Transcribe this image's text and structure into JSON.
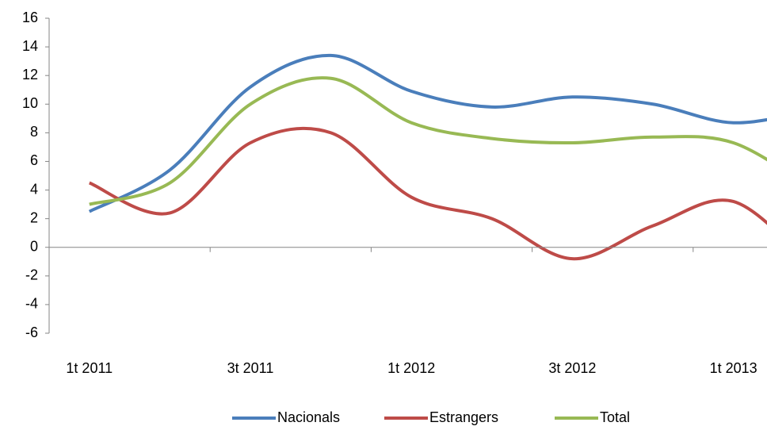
{
  "chart_data": {
    "type": "line",
    "categories": [
      "1t 2011",
      null,
      "3t 2011",
      null,
      "1t 2012",
      null,
      "3t 2012",
      null,
      "1t 2013",
      null
    ],
    "series": [
      {
        "name": "Nacionals",
        "color": "#4a7ebb",
        "values": [
          2.5,
          5.4,
          11.2,
          13.4,
          10.9,
          9.8,
          10.5,
          10.0,
          8.7,
          9.6
        ]
      },
      {
        "name": "Estrangers",
        "color": "#be4b48",
        "values": [
          4.5,
          2.4,
          7.3,
          8.0,
          3.5,
          2.0,
          -0.8,
          1.5,
          3.2,
          -1.5
        ]
      },
      {
        "name": "Total",
        "color": "#98b954",
        "values": [
          3.0,
          4.5,
          10.0,
          11.8,
          8.7,
          7.6,
          7.3,
          7.7,
          7.3,
          4.0
        ]
      }
    ],
    "ylim": [
      -6,
      16
    ],
    "yticks": [
      -6,
      -4,
      -2,
      0,
      2,
      4,
      6,
      8,
      10,
      12,
      14,
      16
    ],
    "smooth": true,
    "legend": "bottom"
  }
}
